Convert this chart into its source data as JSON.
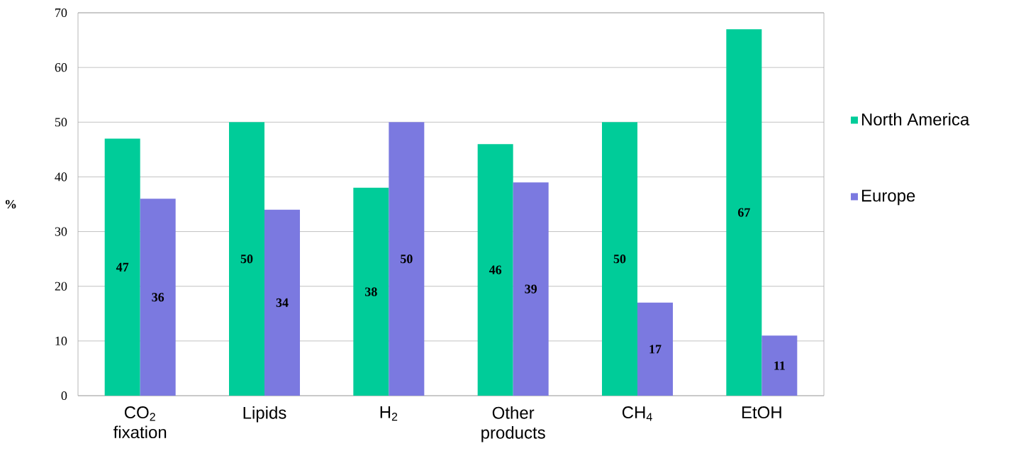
{
  "chart_data": {
    "type": "bar",
    "ylabel": "%",
    "categories": [
      "CO$_{2}$ fixation",
      "Lipids",
      "H$_{2}$",
      "Other products",
      "CH$_{4}$",
      "EtOH"
    ],
    "series": [
      {
        "name": "North America",
        "color": "#00cc99",
        "values": [
          47,
          50,
          38,
          46,
          50,
          67
        ]
      },
      {
        "name": "Europe",
        "color": "#7b79e0",
        "values": [
          36,
          34,
          50,
          39,
          17,
          11
        ]
      }
    ],
    "ylim": [
      0,
      70
    ],
    "yticks": [
      0,
      10,
      20,
      30,
      40,
      50,
      60,
      70
    ],
    "grid": "y",
    "legend": "right",
    "data_labels": true
  }
}
